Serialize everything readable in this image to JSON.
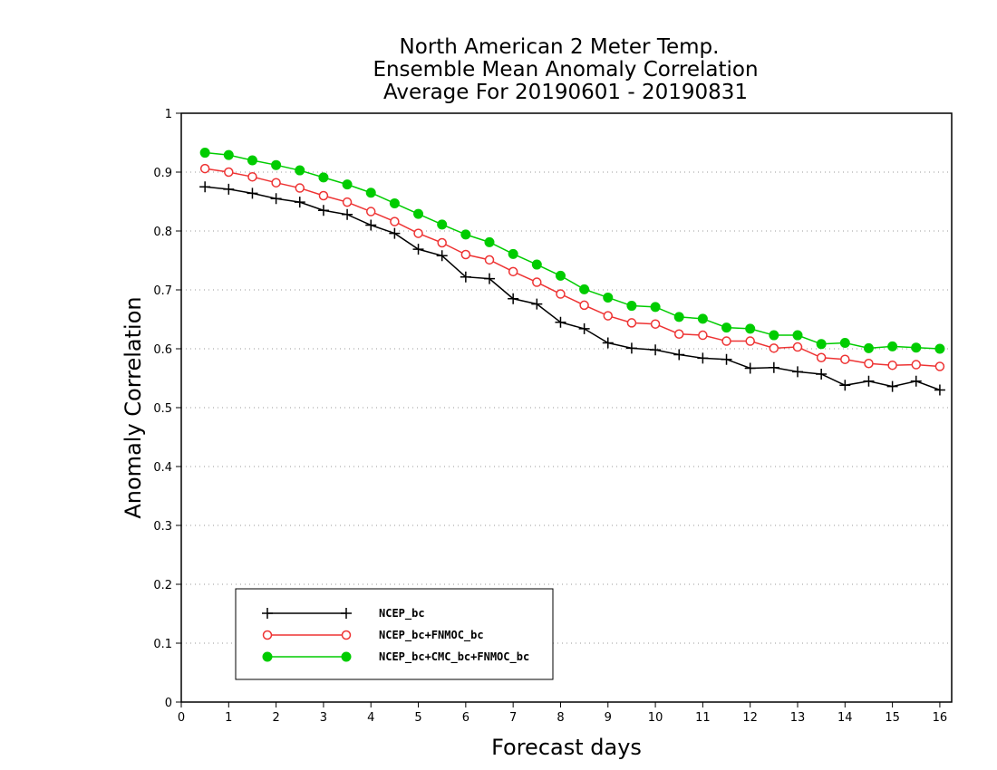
{
  "chart_data": {
    "type": "line",
    "title": [
      "North American 2 Meter Temp.",
      "Ensemble Mean Anomaly Correlation",
      "Average For 20190601 - 20190831"
    ],
    "xlabel": "Forecast days",
    "ylabel": "Anomaly Correlation",
    "xlim": [
      0,
      16.25
    ],
    "ylim": [
      0,
      1
    ],
    "x_ticks": [
      "0",
      "1",
      "2",
      "3",
      "4",
      "5",
      "6",
      "7",
      "8",
      "9",
      "10",
      "11",
      "12",
      "13",
      "14",
      "15",
      "16"
    ],
    "y_ticks": [
      "0",
      "0.1",
      "0.2",
      "0.3",
      "0.4",
      "0.5",
      "0.6",
      "0.7",
      "0.8",
      "0.9",
      "1"
    ],
    "grid": "horizontal dotted",
    "legend_position": "bottom-left",
    "x": [
      0.5,
      1,
      1.5,
      2,
      2.5,
      3,
      3.5,
      4,
      4.5,
      5,
      5.5,
      6,
      6.5,
      7,
      7.5,
      8,
      8.5,
      9,
      9.5,
      10,
      10.5,
      11,
      11.5,
      12,
      12.5,
      13,
      13.5,
      14,
      14.5,
      15,
      15.5,
      16
    ],
    "series": [
      {
        "name": "NCEP_bc",
        "color": "#000000",
        "marker": "plus",
        "values": [
          0.875,
          0.871,
          0.864,
          0.855,
          0.849,
          0.835,
          0.828,
          0.81,
          0.796,
          0.769,
          0.758,
          0.722,
          0.719,
          0.685,
          0.676,
          0.645,
          0.634,
          0.61,
          0.601,
          0.598,
          0.59,
          0.584,
          0.582,
          0.567,
          0.568,
          0.561,
          0.557,
          0.538,
          0.545,
          0.536,
          0.545,
          0.53
        ]
      },
      {
        "name": "NCEP_bc+FNMOC_bc",
        "color": "#ee3333",
        "marker": "open-circle",
        "values": [
          0.906,
          0.9,
          0.892,
          0.882,
          0.873,
          0.86,
          0.849,
          0.833,
          0.816,
          0.796,
          0.78,
          0.76,
          0.751,
          0.731,
          0.713,
          0.693,
          0.674,
          0.656,
          0.644,
          0.642,
          0.625,
          0.623,
          0.613,
          0.613,
          0.601,
          0.603,
          0.585,
          0.582,
          0.575,
          0.572,
          0.573,
          0.57
        ]
      },
      {
        "name": "NCEP_bc+CMC_bc+FNMOC_bc",
        "color": "#00cc00",
        "marker": "filled-circle",
        "values": [
          0.933,
          0.929,
          0.92,
          0.912,
          0.903,
          0.891,
          0.879,
          0.865,
          0.847,
          0.829,
          0.811,
          0.794,
          0.781,
          0.761,
          0.743,
          0.724,
          0.701,
          0.687,
          0.673,
          0.671,
          0.654,
          0.651,
          0.636,
          0.634,
          0.623,
          0.623,
          0.608,
          0.61,
          0.601,
          0.604,
          0.602,
          0.6
        ]
      }
    ]
  }
}
